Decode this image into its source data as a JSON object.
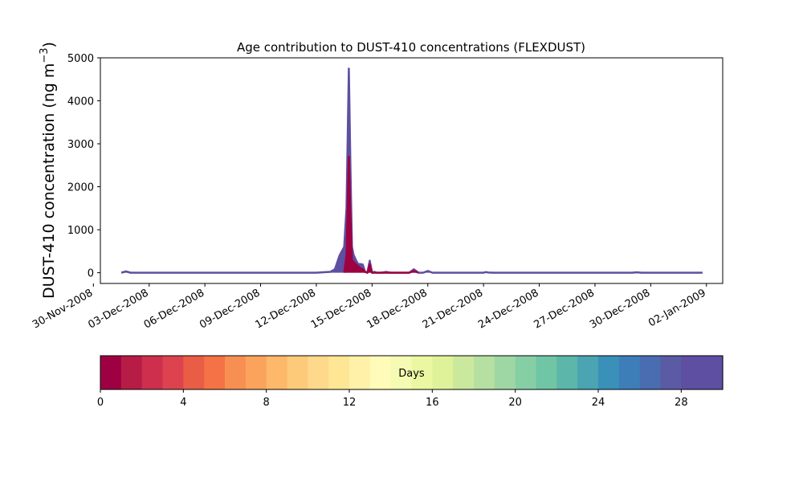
{
  "chart_data": {
    "type": "area",
    "title": "Age contribution to DUST-410 concentrations (FLEXDUST)",
    "ylabel_main": "DUST-410 concentration (ng m",
    "ylabel_sup": "−3",
    "ylabel_tail": ")",
    "xlabel": "",
    "ylim": [
      -250,
      5000
    ],
    "yticks": [
      0,
      1000,
      2000,
      3000,
      4000,
      5000
    ],
    "xlim": [
      "2008-11-30T09:00",
      "2009-01-02T21:00"
    ],
    "xticks": [
      "30-Nov-2008",
      "03-Dec-2008",
      "06-Dec-2008",
      "09-Dec-2008",
      "12-Dec-2008",
      "15-Dec-2008",
      "18-Dec-2008",
      "21-Dec-2008",
      "24-Dec-2008",
      "27-Dec-2008",
      "30-Dec-2008",
      "02-Jan-2009"
    ],
    "grid": false,
    "total_series": {
      "color": "#5e4fa2",
      "x": [
        "2008-12-01T12:00",
        "2008-12-01T18:00",
        "2008-12-02T00:00",
        "2008-12-05T00:00",
        "2008-12-10T00:00",
        "2008-12-12T00:00",
        "2008-12-12T18:00",
        "2008-12-13T00:00",
        "2008-12-13T06:00",
        "2008-12-13T12:00",
        "2008-12-13T15:00",
        "2008-12-13T18:00",
        "2008-12-13T20:00",
        "2008-12-13T22:00",
        "2008-12-14T00:00",
        "2008-12-14T03:00",
        "2008-12-14T06:00",
        "2008-12-14T09:00",
        "2008-12-14T12:00",
        "2008-12-14T15:00",
        "2008-12-14T18:00",
        "2008-12-14T21:00",
        "2008-12-15T00:00",
        "2008-12-15T03:00",
        "2008-12-15T06:00",
        "2008-12-15T09:00",
        "2008-12-15T12:00",
        "2008-12-15T18:00",
        "2008-12-16T00:00",
        "2008-12-16T12:00",
        "2008-12-17T00:00",
        "2008-12-17T06:00",
        "2008-12-17T12:00",
        "2008-12-17T18:00",
        "2008-12-18T00:00",
        "2008-12-18T06:00",
        "2008-12-18T12:00",
        "2008-12-19T00:00",
        "2008-12-20T00:00",
        "2008-12-21T00:00",
        "2008-12-21T03:00",
        "2008-12-21T06:00",
        "2008-12-21T12:00",
        "2008-12-25T00:00",
        "2008-12-29T00:00",
        "2008-12-29T06:00",
        "2008-12-29T12:00",
        "2009-01-01T00:00",
        "2009-01-01T19:00"
      ],
      "values": [
        0,
        30,
        0,
        0,
        0,
        0,
        20,
        80,
        400,
        600,
        1500,
        4750,
        2500,
        600,
        420,
        300,
        200,
        200,
        190,
        20,
        0,
        280,
        0,
        20,
        0,
        0,
        0,
        20,
        0,
        0,
        0,
        80,
        0,
        0,
        40,
        0,
        0,
        0,
        0,
        0,
        15,
        5,
        0,
        0,
        0,
        10,
        0,
        0,
        0
      ]
    },
    "recent_days_series": {
      "color": "#9e0142",
      "x": [
        "2008-12-13T12:00",
        "2008-12-13T15:00",
        "2008-12-13T18:00",
        "2008-12-13T20:00",
        "2008-12-13T22:00",
        "2008-12-14T00:00",
        "2008-12-14T03:00",
        "2008-12-14T06:00",
        "2008-12-14T09:00",
        "2008-12-14T12:00",
        "2008-12-14T15:00",
        "2008-12-14T18:00",
        "2008-12-14T21:00",
        "2008-12-15T00:00",
        "2008-12-17T00:00",
        "2008-12-17T06:00",
        "2008-12-17T12:00"
      ],
      "values": [
        0,
        400,
        2700,
        1300,
        300,
        250,
        200,
        150,
        100,
        80,
        20,
        0,
        200,
        0,
        0,
        40,
        0
      ]
    },
    "colorbar": {
      "label": "Days",
      "vmin": 0,
      "vmax": 30,
      "ticks": [
        0,
        4,
        8,
        12,
        16,
        20,
        24,
        28
      ],
      "colors": [
        "#9e0142",
        "#b71c46",
        "#cd2f4c",
        "#dc434e",
        "#e95d47",
        "#f47245",
        "#f88f52",
        "#fba35d",
        "#fdb869",
        "#fdca79",
        "#fed98b",
        "#fee695",
        "#fff1a8",
        "#fffcb9",
        "#f5fbb2",
        "#ecf7a1",
        "#dff299",
        "#cbe99d",
        "#b6e0a1",
        "#9ed7a4",
        "#86cfa5",
        "#6fc5a4",
        "#5cb6a9",
        "#4aa4b1",
        "#3990b9",
        "#3d7eb9",
        "#4a6cb0",
        "#5b5aa5",
        "#5e4fa2",
        "#5e4fa2"
      ]
    }
  }
}
